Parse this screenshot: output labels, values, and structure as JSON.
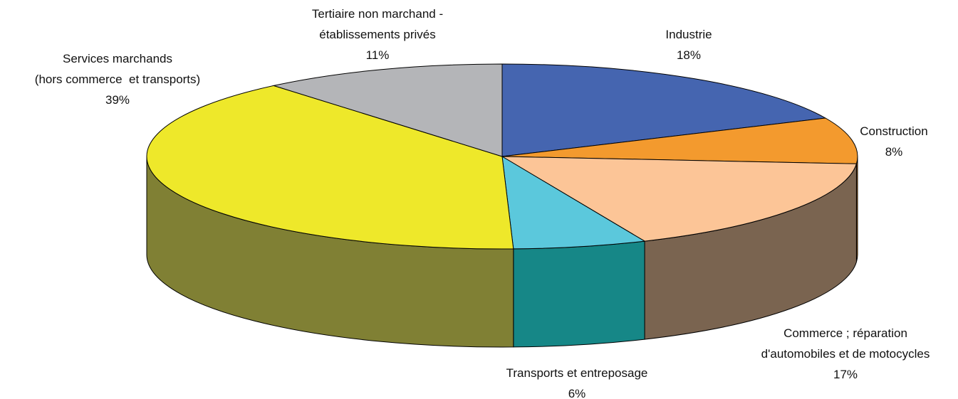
{
  "chart_data": {
    "type": "pie3d",
    "categories": [
      "Industrie",
      "Construction",
      "Commerce ; réparation\nd'automobiles et de motocycles",
      "Transports et entreposage",
      "Services marchands\n(hors commerce  et transports)",
      "Tertiaire non marchand -\nétablissements privés"
    ],
    "values": [
      18,
      8,
      17,
      6,
      39,
      11
    ],
    "value_labels": [
      "18%",
      "8%",
      "17%",
      "6%",
      "39%",
      "11%"
    ],
    "colors": [
      "#4565b0",
      "#f39a2e",
      "#fcc597",
      "#5bc8dc",
      "#eee82a",
      "#b4b5b8"
    ],
    "side_colors": [
      "#2e4680",
      "#b06a1a",
      "#7a6450",
      "#168787",
      "#808034",
      "#7e7f82"
    ]
  }
}
